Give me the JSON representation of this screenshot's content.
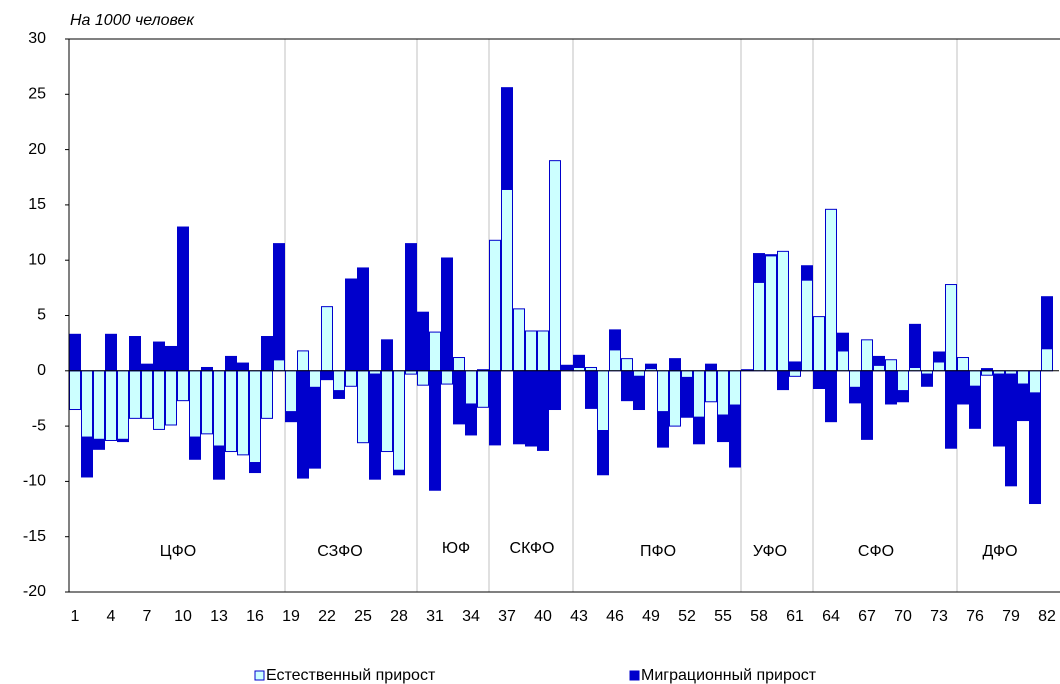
{
  "chart_data": {
    "type": "bar",
    "stacked": true,
    "subtitle": "На 1000 человек",
    "categories": [
      "1",
      null,
      null,
      "4",
      null,
      null,
      "7",
      null,
      null,
      "10",
      null,
      null,
      "13",
      null,
      null,
      "16",
      null,
      null,
      "19",
      null,
      null,
      "22",
      null,
      null,
      "25",
      null,
      null,
      "28",
      null,
      null,
      "31",
      null,
      null,
      "34",
      null,
      null,
      "37",
      null,
      null,
      "40",
      null,
      null,
      "43",
      null,
      null,
      "46",
      null,
      null,
      "49",
      null,
      null,
      "52",
      null,
      null,
      "55",
      null,
      null,
      "58",
      null,
      null,
      "61",
      null,
      null,
      "64",
      null,
      null,
      "67",
      null,
      null,
      "70",
      null,
      null,
      "73",
      null,
      null,
      "76",
      null,
      null,
      "79",
      null,
      null,
      "82"
    ],
    "series": [
      {
        "name": "Естественный прирост",
        "color": "#ccffff",
        "edge_color": "#0000cc",
        "values": [
          -3.5,
          -6.0,
          -6.2,
          -6.3,
          -6.2,
          -4.3,
          -4.3,
          -5.3,
          -4.9,
          -2.7,
          -6.0,
          -5.7,
          -6.8,
          -7.3,
          -7.6,
          -8.3,
          -4.3,
          1.0,
          -3.7,
          1.8,
          -1.5,
          5.8,
          -1.8,
          -1.4,
          -6.5,
          -0.3,
          -7.3,
          -9.0,
          -0.3,
          -1.3,
          3.5,
          -1.2,
          1.2,
          -3.0,
          -3.3,
          11.8,
          16.4,
          5.6,
          3.6,
          3.6,
          19.0,
          0.1,
          0.3,
          0.3,
          -5.4,
          1.9,
          1.1,
          -0.5,
          0.2,
          -3.7,
          -5.0,
          -0.6,
          -4.2,
          -2.8,
          -4.0,
          -3.1,
          0.0,
          8.0,
          10.4,
          10.8,
          -0.5,
          8.2,
          4.9,
          14.6,
          1.8,
          -1.5,
          2.8,
          0.5,
          1.0,
          -1.8,
          0.3,
          -0.3,
          0.8,
          7.8,
          1.2,
          -1.4,
          -0.4,
          -0.3,
          -0.3,
          -1.2,
          -2.0,
          2.0
        ]
      },
      {
        "name": "Миграционный прирост",
        "color": "#0000cc",
        "edge_color": "#0000cc",
        "values": [
          3.3,
          -3.6,
          -0.9,
          3.3,
          -0.2,
          3.1,
          0.6,
          2.6,
          2.2,
          13.0,
          -2.0,
          0.3,
          -3.0,
          1.3,
          0.7,
          -0.9,
          3.1,
          10.5,
          -0.9,
          -9.7,
          -7.3,
          -0.8,
          -0.7,
          8.3,
          9.3,
          -9.5,
          2.8,
          -0.4,
          11.5,
          5.3,
          -10.8,
          10.2,
          -4.8,
          -2.8,
          0.1,
          -6.7,
          9.2,
          -6.6,
          -6.8,
          -7.2,
          -3.5,
          0.4,
          1.1,
          -3.4,
          -4.0,
          1.8,
          -2.7,
          -3.0,
          0.4,
          -3.2,
          1.1,
          -3.6,
          -2.4,
          0.6,
          -2.4,
          -5.6,
          0.1,
          2.6,
          0.1,
          -1.7,
          0.8,
          1.3,
          -1.6,
          -4.6,
          1.6,
          -1.4,
          -6.2,
          0.8,
          -3.0,
          -1.0,
          3.9,
          -1.1,
          0.9,
          -7.0,
          -3.0,
          -3.8,
          0.2,
          -6.5,
          -10.1,
          -3.3,
          -10.0,
          4.7
        ]
      }
    ],
    "district_labels": [
      "ЦФО",
      "СЗФО",
      "ЮФ",
      "СКФО",
      "ПФО",
      "УФО",
      "СФО",
      "ДФО"
    ],
    "ylim": [
      -20,
      30
    ],
    "yticks": [
      -20,
      -15,
      -10,
      -5,
      0,
      5,
      10,
      15,
      20,
      25,
      30
    ],
    "legend": "bottom"
  }
}
